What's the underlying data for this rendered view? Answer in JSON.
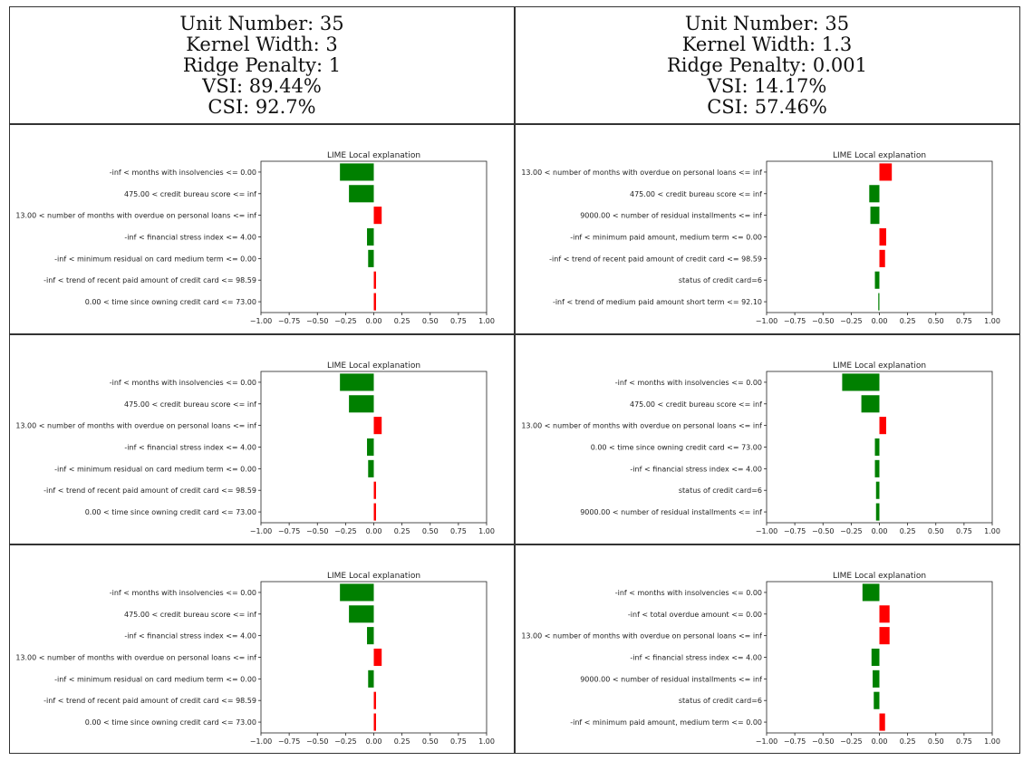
{
  "columns": [
    {
      "unit_number": "Unit Number: 35",
      "kernel_width": "Kernel Width: 3",
      "ridge_penalty": "Ridge Penalty: 1",
      "vsi": "VSI: 89.44%",
      "csi": "CSI: 92.7%"
    },
    {
      "unit_number": "Unit Number: 35",
      "kernel_width": "Kernel Width: 1.3",
      "ridge_penalty": "Ridge Penalty: 0.001",
      "vsi": "VSI: 14.17%",
      "csi": "CSI: 57.46%"
    }
  ],
  "colors": {
    "negative": "#008000",
    "positive": "#ff0000"
  },
  "chart_data": [
    {
      "type": "bar",
      "orientation": "horizontal",
      "title": "LIME Local explanation",
      "xlim": [
        -1.0,
        1.0
      ],
      "xticks": [
        "−1.00",
        "−0.75",
        "−0.50",
        "−0.25",
        "0.00",
        "0.25",
        "0.50",
        "0.75",
        "1.00"
      ],
      "categories": [
        "-inf < months with insolvencies <= 0.00",
        "475.00 < credit bureau score <= inf",
        "13.00 < number of months with overdue on personal loans <= inf",
        "-inf < financial stress index <= 4.00",
        "-inf < minimum residual on card medium term <= 0.00",
        "-inf < trend of recent paid amount of credit card <= 98.59",
        "0.00 < time since owning credit card <= 73.00"
      ],
      "values": [
        -0.3,
        -0.22,
        0.07,
        -0.06,
        -0.05,
        0.02,
        0.02
      ]
    },
    {
      "type": "bar",
      "orientation": "horizontal",
      "title": "LIME Local explanation",
      "xlim": [
        -1.0,
        1.0
      ],
      "xticks": [
        "−1.00",
        "−0.75",
        "−0.50",
        "−0.25",
        "0.00",
        "0.25",
        "0.50",
        "0.75",
        "1.00"
      ],
      "categories": [
        "13.00 < number of months with overdue on personal loans <= inf",
        "475.00 < credit bureau score <= inf",
        "9000.00 < number of residual installments <= inf",
        "-inf < minimum paid amount, medium term <= 0.00",
        "-inf < trend of recent paid amount of credit card <= 98.59",
        "status of credit card=6",
        "-inf < trend of medium paid amount short term <= 92.10"
      ],
      "values": [
        0.11,
        -0.09,
        -0.08,
        0.06,
        0.05,
        -0.04,
        -0.01
      ]
    },
    {
      "type": "bar",
      "orientation": "horizontal",
      "title": "LIME Local explanation",
      "xlim": [
        -1.0,
        1.0
      ],
      "xticks": [
        "−1.00",
        "−0.75",
        "−0.50",
        "−0.25",
        "0.00",
        "0.25",
        "0.50",
        "0.75",
        "1.00"
      ],
      "categories": [
        "-inf < months with insolvencies <= 0.00",
        "475.00 < credit bureau score <= inf",
        "13.00 < number of months with overdue on personal loans <= inf",
        "-inf < financial stress index <= 4.00",
        "-inf < minimum residual on card medium term <= 0.00",
        "-inf < trend of recent paid amount of credit card <= 98.59",
        "0.00 < time since owning credit card <= 73.00"
      ],
      "values": [
        -0.3,
        -0.22,
        0.07,
        -0.06,
        -0.05,
        0.02,
        0.02
      ]
    },
    {
      "type": "bar",
      "orientation": "horizontal",
      "title": "LIME Local explanation",
      "xlim": [
        -1.0,
        1.0
      ],
      "xticks": [
        "−1.00",
        "−0.75",
        "−0.50",
        "−0.25",
        "0.00",
        "0.25",
        "0.50",
        "0.75",
        "1.00"
      ],
      "categories": [
        "-inf < months with insolvencies <= 0.00",
        "475.00 < credit bureau score <= inf",
        "13.00 < number of months with overdue on personal loans <= inf",
        "0.00 < time since owning credit card <= 73.00",
        "-inf < financial stress index <= 4.00",
        "status of credit card=6",
        "9000.00 < number of residual installments <= inf"
      ],
      "values": [
        -0.33,
        -0.16,
        0.06,
        -0.04,
        -0.04,
        -0.03,
        -0.03
      ]
    },
    {
      "type": "bar",
      "orientation": "horizontal",
      "title": "LIME Local explanation",
      "xlim": [
        -1.0,
        1.0
      ],
      "xticks": [
        "−1.00",
        "−0.75",
        "−0.50",
        "−0.25",
        "0.00",
        "0.25",
        "0.50",
        "0.75",
        "1.00"
      ],
      "categories": [
        "-inf < months with insolvencies <= 0.00",
        "475.00 < credit bureau score <= inf",
        "-inf < financial stress index <= 4.00",
        "13.00 < number of months with overdue on personal loans <= inf",
        "-inf < minimum residual on card medium term <= 0.00",
        "-inf < trend of recent paid amount of credit card <= 98.59",
        "0.00 < time since owning credit card <= 73.00"
      ],
      "values": [
        -0.3,
        -0.22,
        -0.06,
        0.07,
        -0.05,
        0.02,
        0.02
      ]
    },
    {
      "type": "bar",
      "orientation": "horizontal",
      "title": "LIME Local explanation",
      "xlim": [
        -1.0,
        1.0
      ],
      "xticks": [
        "−1.00",
        "−0.75",
        "−0.50",
        "−0.25",
        "0.00",
        "0.25",
        "0.50",
        "0.75",
        "1.00"
      ],
      "categories": [
        "-inf < months with insolvencies <= 0.00",
        "-inf < total overdue amount <= 0.00",
        "13.00 < number of months with overdue on personal loans <= inf",
        "-inf < financial stress index <= 4.00",
        "9000.00 < number of residual installments <= inf",
        "status of credit card=6",
        "-inf < minimum paid amount, medium term <= 0.00"
      ],
      "values": [
        -0.15,
        0.09,
        0.09,
        -0.07,
        -0.06,
        -0.05,
        0.05
      ]
    }
  ]
}
